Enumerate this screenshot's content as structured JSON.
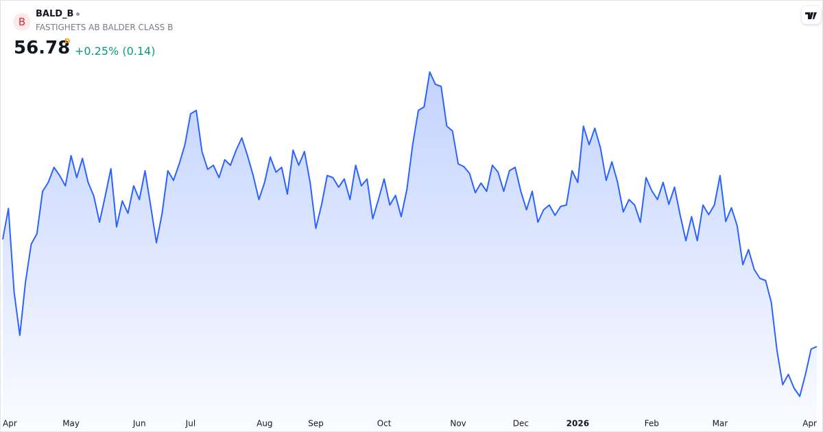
{
  "header": {
    "logo": "B",
    "symbol": "BALD_B",
    "name": "FASTIGHETS AB BALDER CLASS B",
    "price": "56.78",
    "flag": "D",
    "change": "+0.25% (0.14)"
  },
  "chart_data": {
    "type": "area",
    "color": "#2962ff",
    "values": [
      64.6,
      66.85,
      60.75,
      57.6,
      61.5,
      64.25,
      65,
      68.1,
      68.75,
      69.85,
      69.25,
      68.5,
      70.7,
      69.1,
      70.5,
      68.75,
      67.75,
      65.85,
      67.75,
      69.75,
      65.5,
      67.4,
      66.5,
      68.5,
      67.5,
      69.6,
      67,
      64.35,
      66.5,
      69.6,
      68.9,
      70.1,
      71.5,
      73.75,
      74,
      71,
      69.7,
      70,
      69.1,
      70.4,
      70,
      71.1,
      72,
      70.7,
      69.25,
      67.5,
      68.75,
      70.6,
      69.5,
      69.85,
      67.9,
      71.1,
      70,
      71,
      68.75,
      65.4,
      67.1,
      69.25,
      69.1,
      68.4,
      69,
      67.5,
      70,
      68.5,
      69,
      66.1,
      67.5,
      69,
      67.1,
      67.8,
      66.25,
      68.25,
      71.5,
      74,
      74.25,
      76.8,
      75.9,
      75.75,
      72.85,
      72.5,
      70.1,
      69.9,
      69.4,
      68,
      68.7,
      68.1,
      70,
      69.5,
      68.1,
      69.6,
      69.85,
      68.1,
      66.75,
      68.1,
      65.85,
      66.75,
      67.1,
      66.35,
      67,
      67.1,
      69.6,
      68.75,
      72.85,
      71.5,
      72.7,
      71.25,
      68.9,
      70.25,
      68.75,
      66.6,
      67.5,
      67.1,
      65.85,
      69.1,
      68.15,
      67.5,
      68.75,
      67.15,
      68.4,
      66.35,
      64.5,
      66.25,
      64.5,
      67.1,
      66.4,
      67.1,
      69.25,
      65.9,
      66.9,
      65.6,
      62.75,
      63.85,
      62.4,
      61.75,
      61.6,
      60,
      56.5,
      54,
      54.75,
      53.75,
      53.15,
      54.75,
      56.6,
      56.78
    ],
    "ylim": [
      52,
      79
    ],
    "xlim": [
      0,
      143
    ],
    "xticks": [
      {
        "value": 0,
        "label": "Apr"
      },
      {
        "value": 12,
        "label": "May"
      },
      {
        "value": 24,
        "label": "Jun"
      },
      {
        "value": 33,
        "label": "Jul"
      },
      {
        "value": 46,
        "label": "Aug"
      },
      {
        "value": 55,
        "label": "Sep"
      },
      {
        "value": 67,
        "label": "Oct"
      },
      {
        "value": 80,
        "label": "Nov"
      },
      {
        "value": 91,
        "label": "Dec"
      },
      {
        "value": 101,
        "label": "2026",
        "emphasis": true
      },
      {
        "value": 114,
        "label": "Feb"
      },
      {
        "value": 126,
        "label": "Mar"
      },
      {
        "value": 143,
        "label": "Apr"
      }
    ],
    "grid": false
  }
}
